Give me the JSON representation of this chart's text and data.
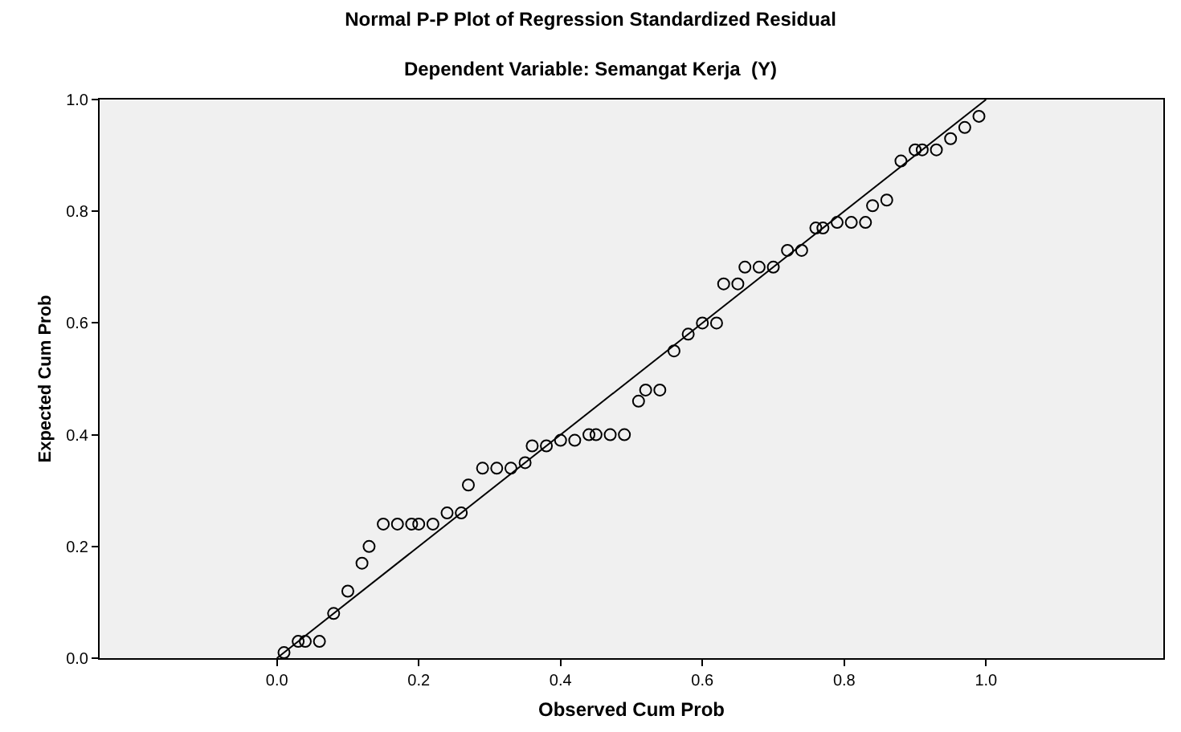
{
  "chart_data": {
    "type": "scatter",
    "title": "Normal P-P Plot of Regression Standardized Residual",
    "subtitle": "Dependent Variable: Semangat Kerja  (Y)",
    "xlabel": "Observed Cum Prob",
    "ylabel": "Expected Cum Prob",
    "xlim": [
      -0.25,
      1.25
    ],
    "ylim": [
      0,
      1
    ],
    "xticks": [
      {
        "value": 0,
        "label": "0.0"
      },
      0.2,
      0.4,
      0.6,
      0.8,
      {
        "value": 1,
        "label": "1.0"
      }
    ],
    "yticks": [
      {
        "value": 0,
        "label": "0.0"
      },
      0.2,
      0.4,
      0.6,
      0.8,
      {
        "value": 1,
        "label": "1.0"
      }
    ],
    "grid": false,
    "marker": "circle",
    "series": [
      {
        "color": "#000000",
        "x": [
          0.01,
          0.03,
          0.04,
          0.06,
          0.08,
          0.1,
          0.12,
          0.13,
          0.15,
          0.17,
          0.19,
          0.2,
          0.22,
          0.24,
          0.26,
          0.27,
          0.29,
          0.31,
          0.33,
          0.35,
          0.36,
          0.38,
          0.4,
          0.42,
          0.44,
          0.45,
          0.47,
          0.49,
          0.51,
          0.52,
          0.54,
          0.56,
          0.58,
          0.6,
          0.62,
          0.63,
          0.65,
          0.66,
          0.68,
          0.7,
          0.72,
          0.74,
          0.76,
          0.77,
          0.79,
          0.81,
          0.83,
          0.84,
          0.86,
          0.88,
          0.9,
          0.91,
          0.93,
          0.95,
          0.97,
          0.99
        ],
        "values": [
          0.01,
          0.03,
          0.03,
          0.03,
          0.08,
          0.12,
          0.17,
          0.2,
          0.24,
          0.24,
          0.24,
          0.24,
          0.24,
          0.26,
          0.26,
          0.31,
          0.34,
          0.34,
          0.34,
          0.35,
          0.38,
          0.38,
          0.39,
          0.39,
          0.4,
          0.4,
          0.4,
          0.4,
          0.46,
          0.48,
          0.48,
          0.55,
          0.58,
          0.6,
          0.6,
          0.67,
          0.67,
          0.7,
          0.7,
          0.7,
          0.73,
          0.73,
          0.77,
          0.77,
          0.78,
          0.78,
          0.78,
          0.81,
          0.82,
          0.89,
          0.91,
          0.91,
          0.91,
          0.93,
          0.95,
          0.97
        ]
      },
      {
        "type": "line",
        "color": "#000000",
        "x": [
          0,
          1
        ],
        "values": [
          0,
          1
        ],
        "marker": "none",
        "line_style": "solid"
      }
    ]
  }
}
